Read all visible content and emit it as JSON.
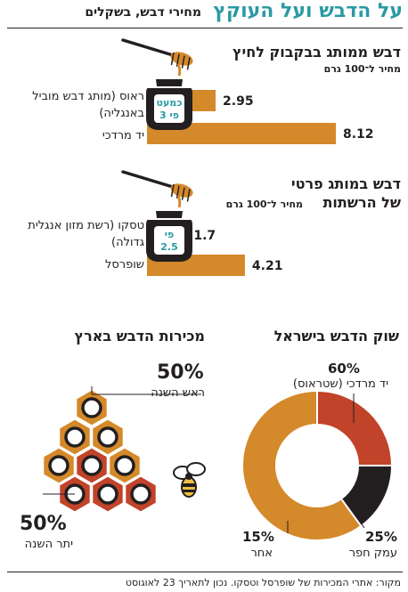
{
  "header": {
    "title": "על הדבש ועל העוקץ",
    "subtitle": "מחירי דבש, בשקלים"
  },
  "chart_data": [
    {
      "type": "bar",
      "title": "דבש ממותג בבקבוק לחיץ",
      "unit_note": "מחיר ל־100 גרם",
      "badge": [
        "כמעט",
        "פי 3"
      ],
      "categories": [
        "ראוס (מותג דבש מוביל באנגליה)",
        "יד מרדכי"
      ],
      "values": [
        2.95,
        8.12
      ],
      "value_labels": [
        "2.95",
        "8.12"
      ],
      "color": "#d4892a"
    },
    {
      "type": "bar",
      "title": "דבש במותג פרטי",
      "title_line2": "של הרשתות",
      "unit_note": "מחיר ל־100 גרם",
      "badge": [
        "פי",
        "2.5"
      ],
      "categories": [
        "טסקו (רשת מזון אנגלית גדולה)",
        "שופרסל"
      ],
      "values": [
        1.7,
        4.21
      ],
      "value_labels": [
        "1.7",
        "4.21"
      ],
      "color": "#d4892a"
    },
    {
      "type": "pie",
      "title": "שוק הדבש בישראל",
      "slices": [
        {
          "label": "יד מרדכי (שטראוס)",
          "value": 60,
          "value_label": "60%",
          "color": "#d4892a"
        },
        {
          "label": "עמק חפר",
          "value": 25,
          "value_label": "25%",
          "color": "#c1432a"
        },
        {
          "label": "אחר",
          "value": 15,
          "value_label": "15%",
          "color": "#231f20"
        }
      ]
    },
    {
      "type": "pie",
      "title": "מכירות הדבש בארץ",
      "slices": [
        {
          "label": "ראש השנה",
          "value": 50,
          "value_label": "50%",
          "color": "#d4892a"
        },
        {
          "label": "יתר השנה",
          "value": 50,
          "value_label": "50%",
          "color": "#c1432a"
        }
      ]
    }
  ],
  "footer": {
    "source": "מקור: אתרי המכירות של שופרסל וטסקו. נכון לתאריך 23 לאוגוסט"
  }
}
